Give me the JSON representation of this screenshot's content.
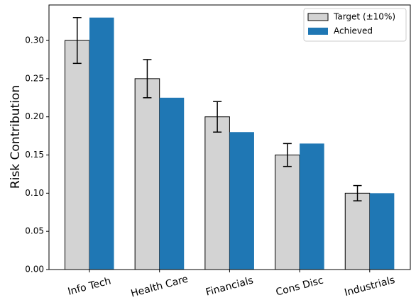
{
  "chart_data": {
    "type": "bar",
    "ylabel": "Risk Contribution",
    "categories": [
      "Info Tech",
      "Health Care",
      "Financials",
      "Cons Disc",
      "Industrials"
    ],
    "series": [
      {
        "name": "Target (±10%)",
        "color": "#d3d3d3",
        "values": [
          0.3,
          0.25,
          0.2,
          0.15,
          0.1
        ],
        "errors": [
          0.03,
          0.025,
          0.02,
          0.015,
          0.01
        ]
      },
      {
        "name": "Achieved",
        "color": "#1f77b4",
        "values": [
          0.33,
          0.225,
          0.18,
          0.165,
          0.1
        ]
      }
    ],
    "ylim": [
      0,
      0.3465
    ],
    "yticks": [
      {
        "value": 0,
        "label": "0.00"
      },
      {
        "value": 0.05,
        "label": "0.05"
      },
      {
        "value": 0.1,
        "label": "0.10"
      },
      {
        "value": 0.15,
        "label": "0.15"
      },
      {
        "value": 0.2,
        "label": "0.20"
      },
      {
        "value": 0.25,
        "label": "0.25"
      },
      {
        "value": 0.3,
        "label": "0.30"
      }
    ],
    "legend": "upper right"
  }
}
